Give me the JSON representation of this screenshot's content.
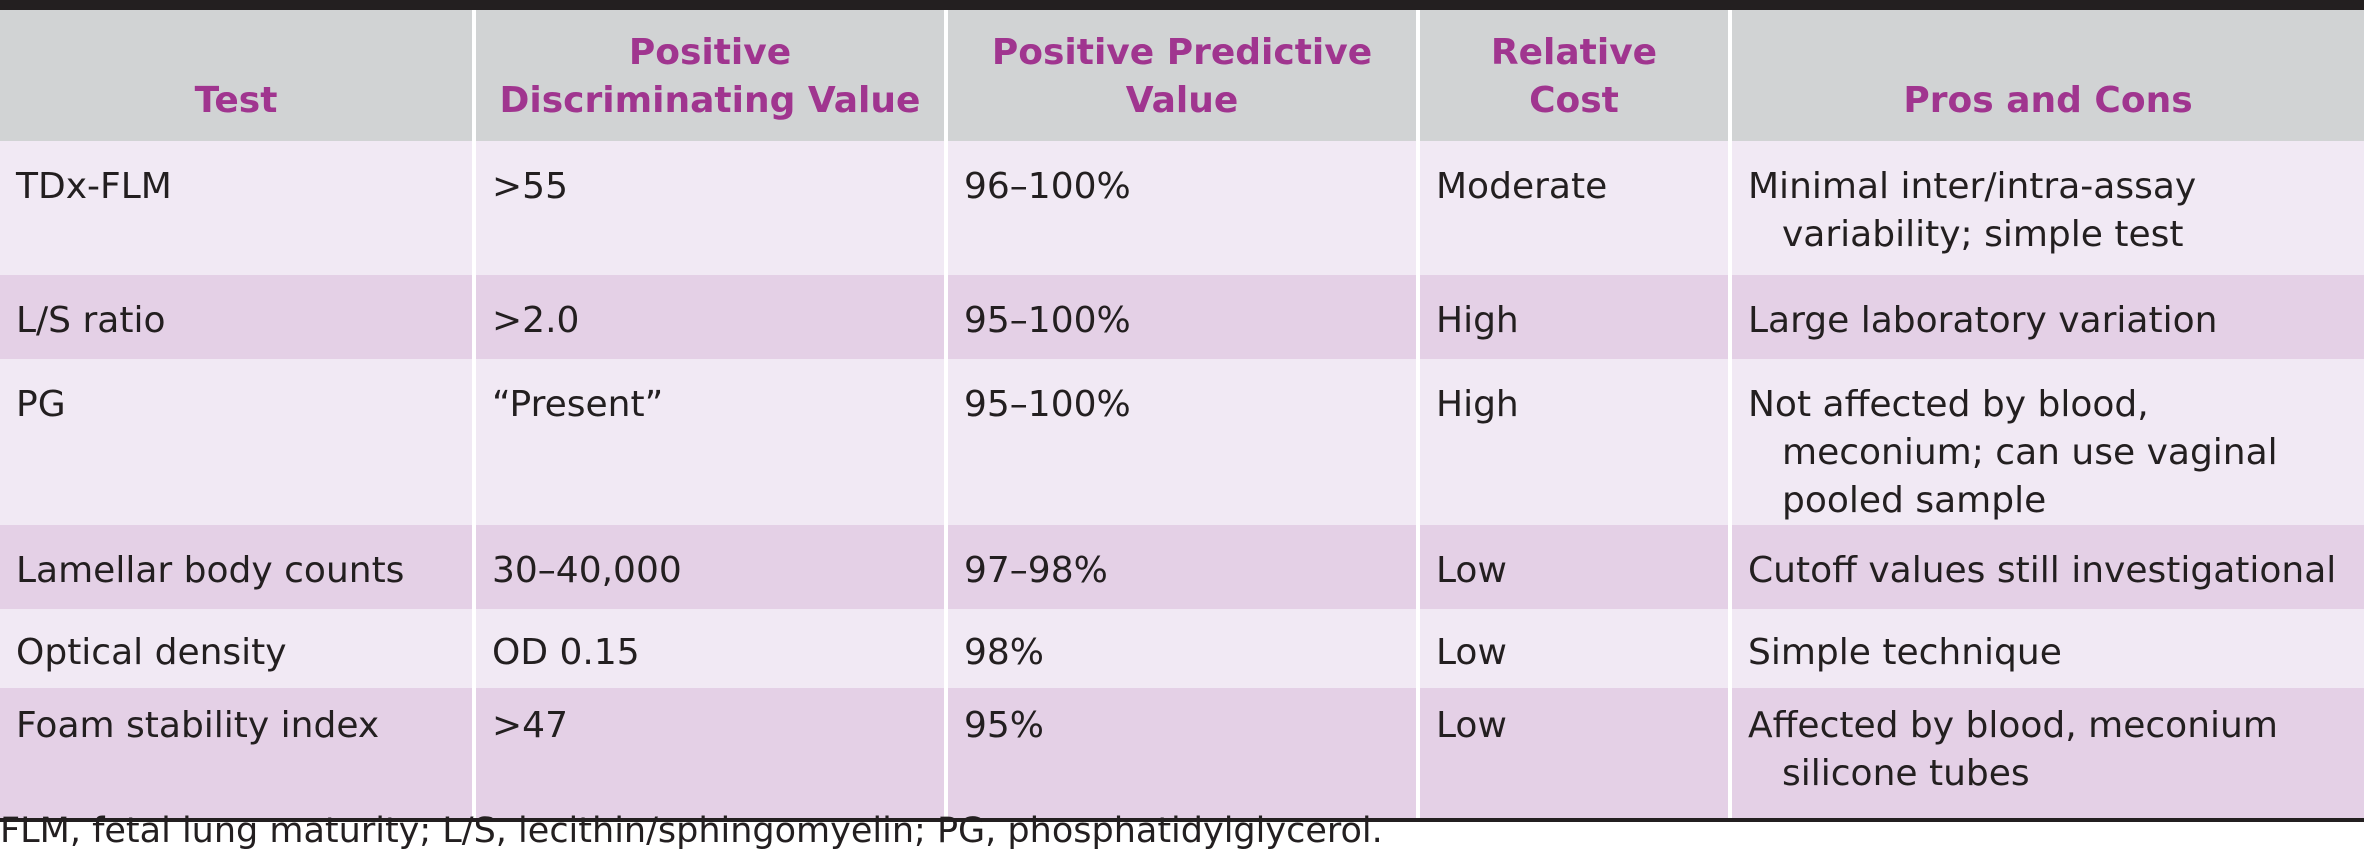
{
  "table": {
    "headers": [
      "Test",
      "Positive Discriminating Value",
      "Positive Predictive Value",
      "Relative Cost",
      "Pros and Cons"
    ],
    "rows": [
      [
        "TDx-FLM",
        ">55",
        "96–100%",
        "Moderate",
        "Minimal inter/intra-assay variability; simple test"
      ],
      [
        "L/S ratio",
        ">2.0",
        "95–100%",
        "High",
        "Large laboratory variation"
      ],
      [
        "PG",
        "“Present”",
        "95–100%",
        "High",
        "Not affected by blood, meconium; can use vaginal pooled sample"
      ],
      [
        "Lamellar body counts",
        "30–40,000",
        "97–98%",
        "Low",
        "Cutoff values still investigational"
      ],
      [
        "Optical density",
        "OD 0.15",
        "98%",
        "Low",
        "Simple technique"
      ],
      [
        "Foam stability index",
        ">47",
        "95%",
        "Low",
        "Affected by blood, meconium silicone tubes"
      ]
    ]
  },
  "footnote": "FLM, fetal lung maturity; L/S, lecithin/sphingomyelin; PG, phosphatidylglycerol.",
  "colors": {
    "header_text": "#a0358f",
    "header_bg": "#d1d3d4",
    "row_light": "#f1e9f4",
    "row_dark": "#e4d0e6",
    "rule": "#231f20"
  }
}
